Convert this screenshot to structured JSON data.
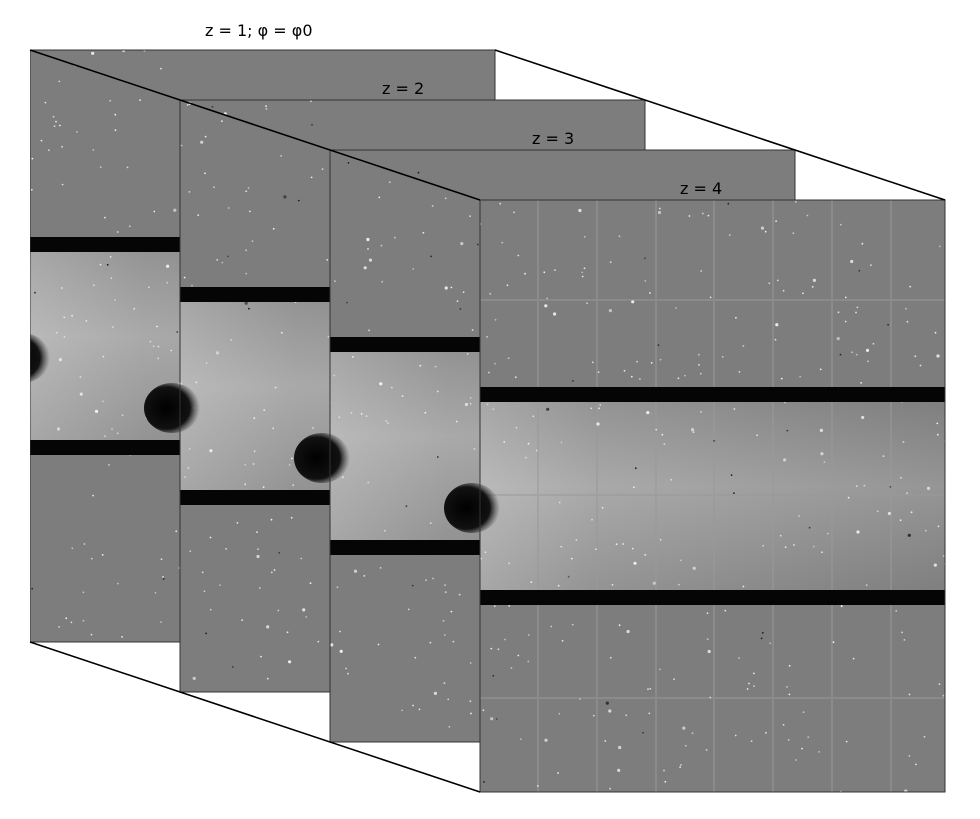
{
  "frames": [
    {
      "label": "z = 1; φ = φ0"
    },
    {
      "label": "z = 2"
    },
    {
      "label": "z = 3"
    },
    {
      "label": "z = 4"
    }
  ]
}
